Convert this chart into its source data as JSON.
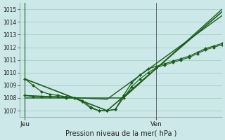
{
  "title": "Pression niveau de la mer( hPa )",
  "xlabel_jeu": "Jeu",
  "xlabel_ven": "Ven",
  "ylim": [
    1006.5,
    1015.5
  ],
  "yticks": [
    1007,
    1008,
    1009,
    1010,
    1011,
    1012,
    1013,
    1014,
    1015
  ],
  "bg_color": "#cce8e8",
  "line_color": "#1a5c1a",
  "grid_color": "#99ccbb",
  "jeu_x": 6,
  "ven_x": 54,
  "xlim": [
    4,
    78
  ],
  "series": [
    {
      "x": [
        6,
        9,
        12,
        15,
        18,
        21,
        24,
        27,
        30,
        33,
        36,
        39,
        42,
        45,
        48,
        51,
        54,
        57,
        60,
        63,
        66,
        69,
        72,
        75,
        78
      ],
      "y": [
        1009.5,
        1009.0,
        1008.5,
        1008.3,
        1008.2,
        1008.1,
        1008.0,
        1007.7,
        1007.2,
        1007.0,
        1007.0,
        1007.1,
        1008.2,
        1009.2,
        1009.8,
        1010.3,
        1010.5,
        1010.7,
        1010.9,
        1011.1,
        1011.3,
        1011.6,
        1011.9,
        1012.1,
        1012.3
      ],
      "marker": "D",
      "markersize": 2.0,
      "linewidth": 0.9,
      "linestyle": "-"
    },
    {
      "x": [
        6,
        9,
        12,
        15,
        18,
        21,
        24,
        27,
        30,
        33,
        36,
        39,
        42,
        45,
        48,
        51,
        54,
        57,
        60,
        63,
        66,
        69,
        72,
        75,
        78
      ],
      "y": [
        1008.2,
        1008.1,
        1008.1,
        1008.1,
        1008.1,
        1008.0,
        1008.0,
        1007.8,
        1007.3,
        1007.0,
        1007.0,
        1007.1,
        1008.0,
        1008.9,
        1009.5,
        1010.0,
        1010.4,
        1010.6,
        1010.8,
        1011.0,
        1011.2,
        1011.5,
        1011.8,
        1012.0,
        1012.2
      ],
      "marker": "D",
      "markersize": 2.0,
      "linewidth": 0.8,
      "linestyle": "-"
    },
    {
      "x": [
        6,
        36,
        78
      ],
      "y": [
        1009.5,
        1007.0,
        1014.8
      ],
      "marker": null,
      "markersize": 0,
      "linewidth": 1.2,
      "linestyle": "-"
    },
    {
      "x": [
        6,
        36,
        78
      ],
      "y": [
        1008.2,
        1007.9,
        1014.5
      ],
      "marker": null,
      "markersize": 0,
      "linewidth": 1.0,
      "linestyle": "-"
    },
    {
      "x": [
        6,
        42,
        78
      ],
      "y": [
        1008.0,
        1008.0,
        1015.0
      ],
      "marker": null,
      "markersize": 0,
      "linewidth": 1.0,
      "linestyle": "-"
    }
  ]
}
